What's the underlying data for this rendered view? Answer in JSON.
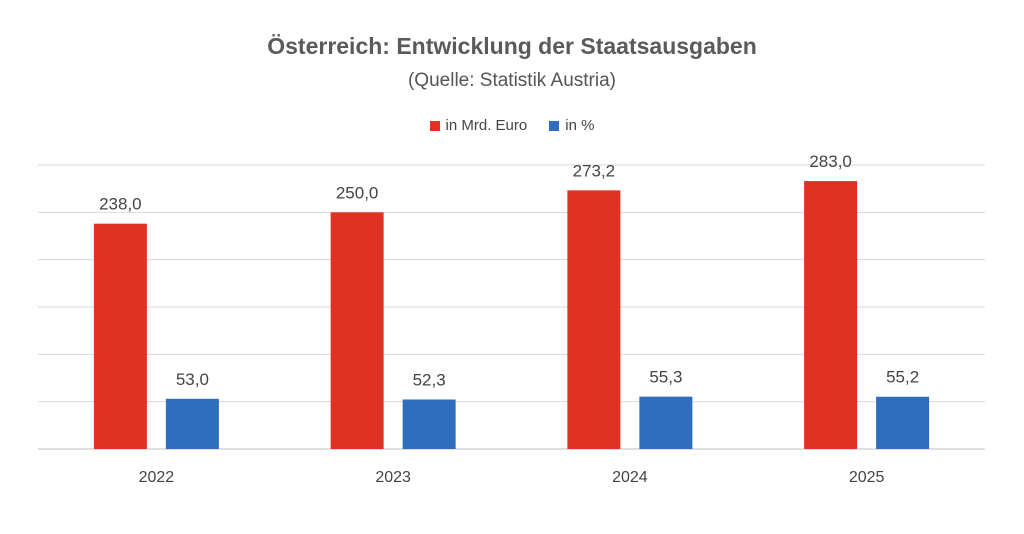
{
  "chart_data": {
    "type": "bar",
    "title": "Österreich: Entwicklung der Staatsausgaben",
    "subtitle": "(Quelle: Statistik Austria)",
    "categories": [
      "2022",
      "2023",
      "2024",
      "2025"
    ],
    "series": [
      {
        "name": "in Mrd. Euro",
        "color": "#e03222",
        "values": [
          238.0,
          250.0,
          273.2,
          283.0
        ],
        "labels": [
          "238,0",
          "250,0",
          "273,2",
          "283,0"
        ]
      },
      {
        "name": "in %",
        "color": "#2f6dbd",
        "values": [
          53.0,
          52.3,
          55.3,
          55.2
        ],
        "labels": [
          "53,0",
          "52,3",
          "55,3",
          "55,2"
        ]
      }
    ],
    "ylim": [
      0,
      300
    ],
    "grid": true,
    "legend_position": "top-center",
    "xlabel": "",
    "ylabel": ""
  }
}
